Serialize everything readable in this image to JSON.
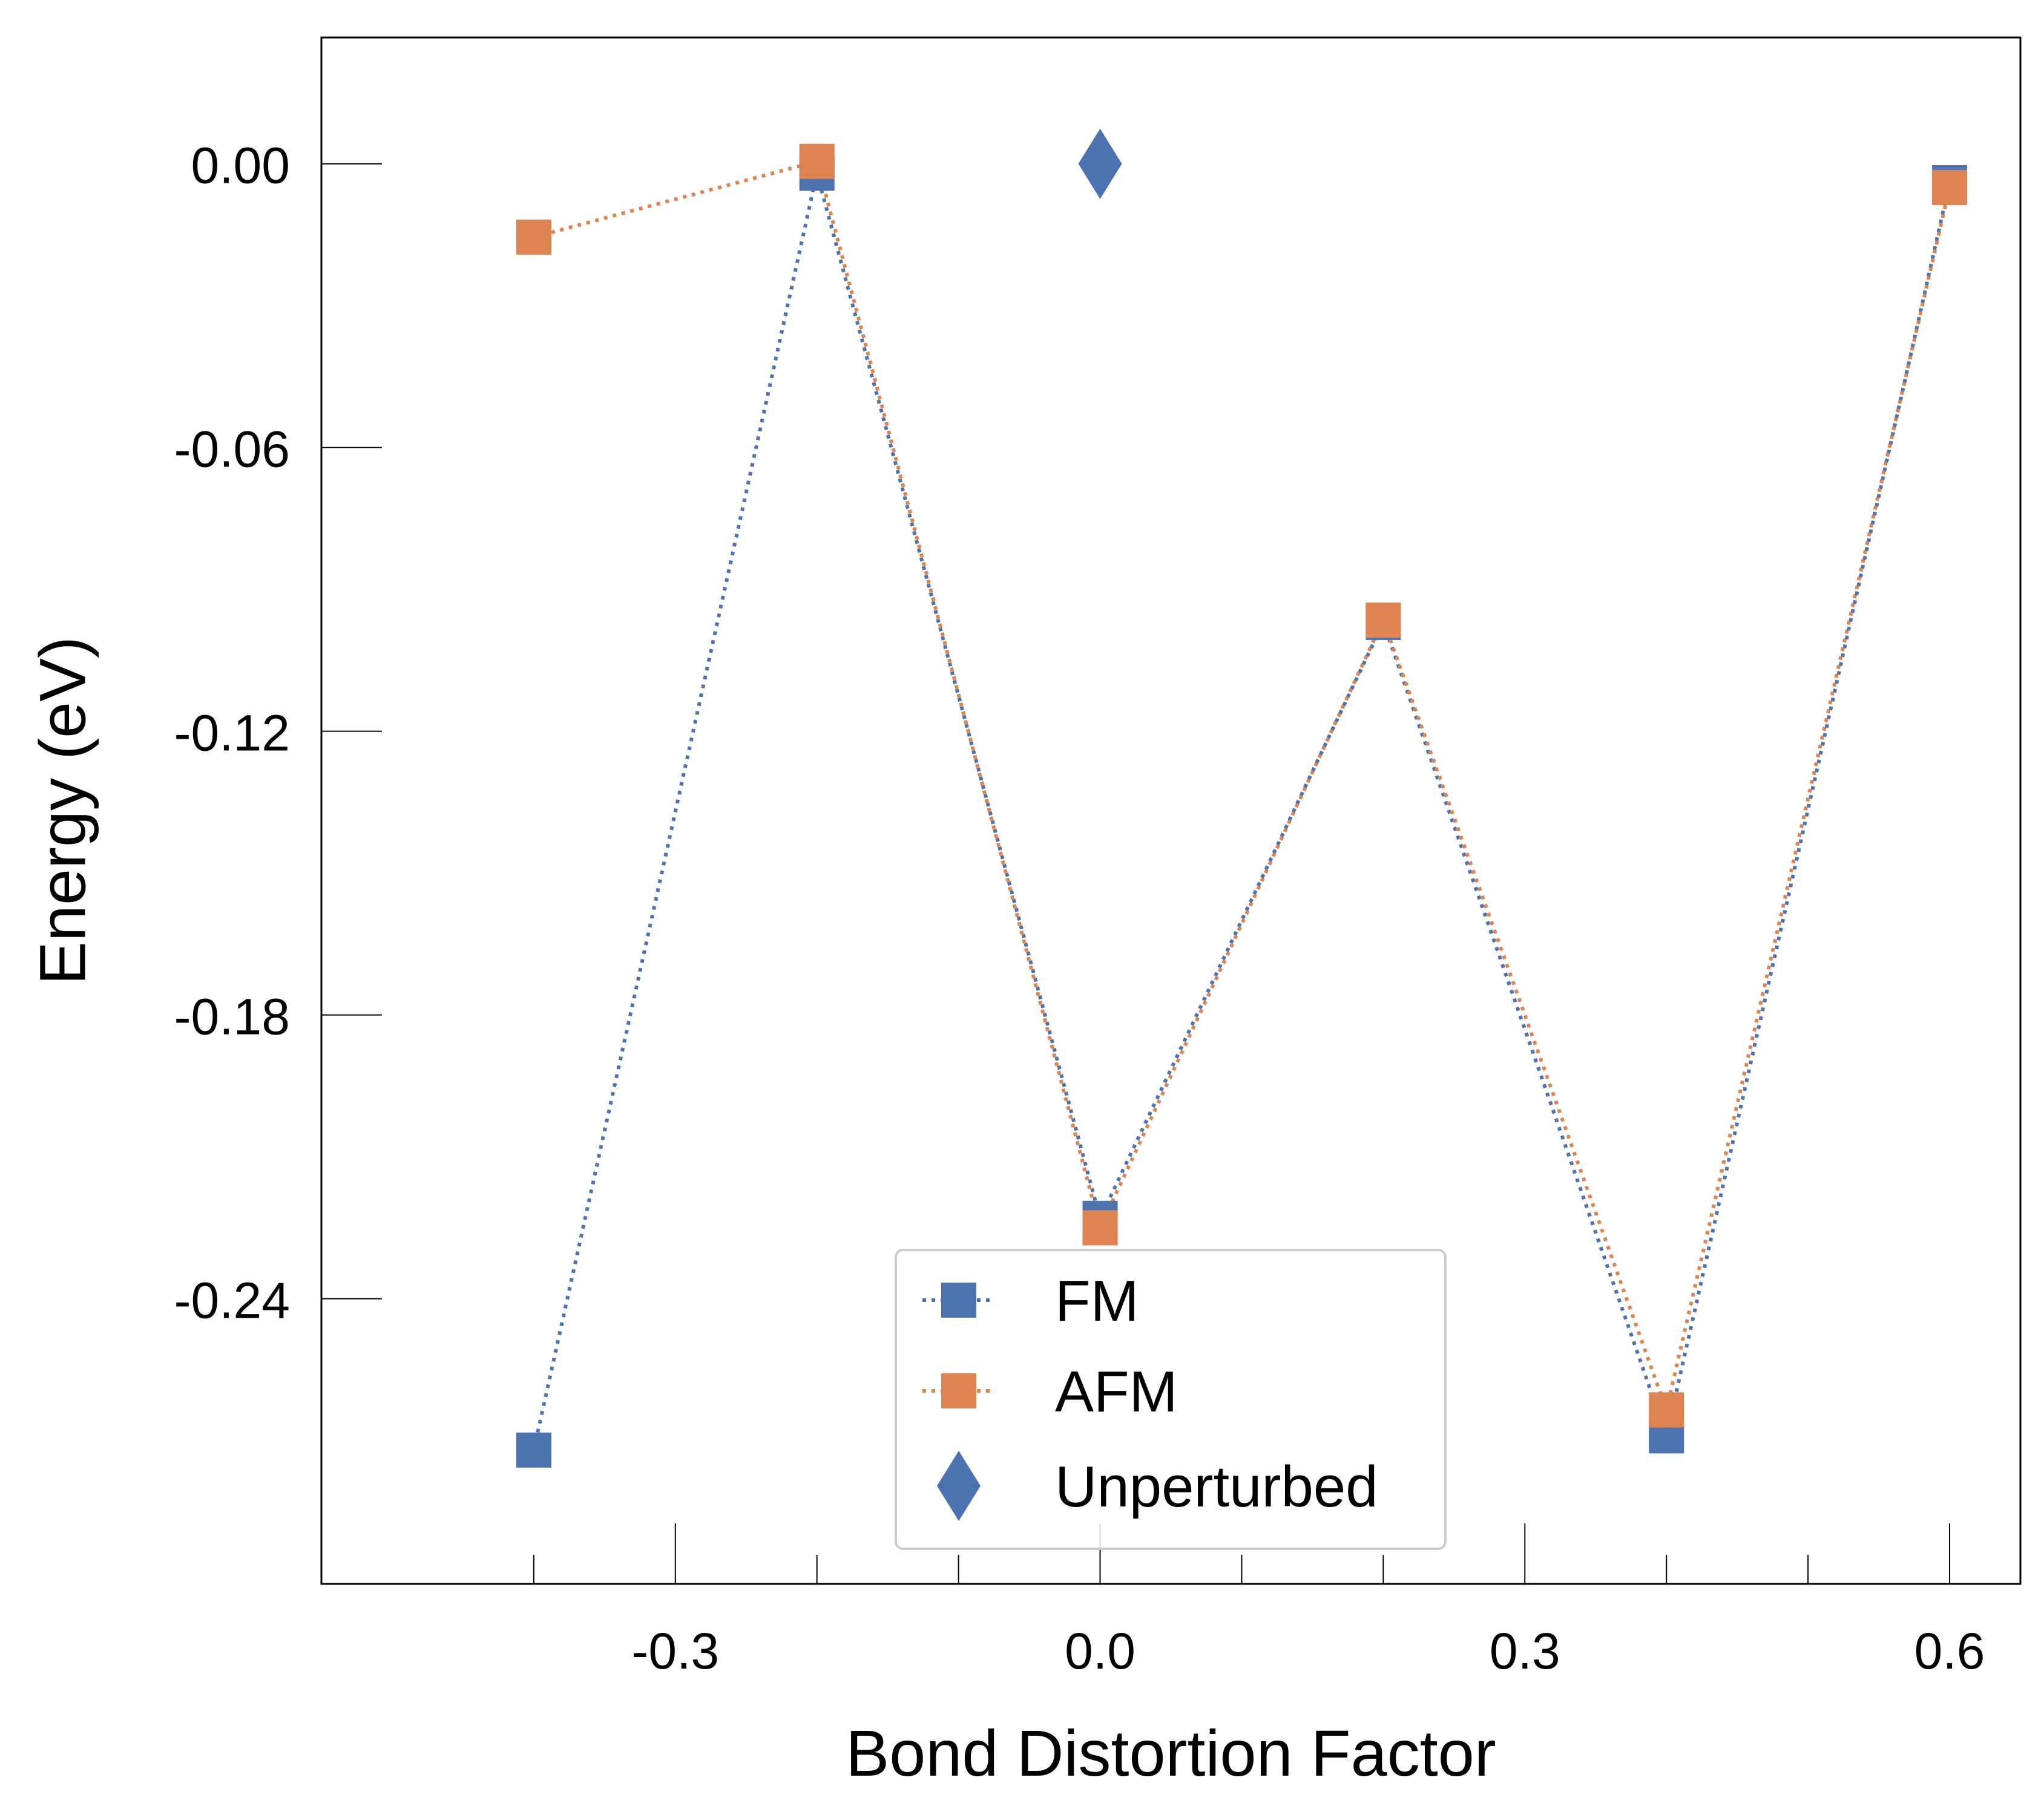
{
  "chart_data": {
    "type": "scatter",
    "title": "",
    "xlabel": "Bond Distortion Factor",
    "ylabel": "Energy (eV)",
    "xlim": [
      -0.55,
      0.65
    ],
    "ylim": [
      -0.3003,
      0.0267
    ],
    "x_major_ticks": [
      -0.3,
      0.0,
      0.3,
      0.6
    ],
    "x_tick_labels": [
      "-0.3",
      "0.0",
      "0.3",
      "0.6"
    ],
    "x_minor_ticks": [
      -0.4,
      -0.2,
      -0.1,
      0.1,
      0.2,
      0.4,
      0.5
    ],
    "y_major_ticks": [
      0.0,
      -0.06,
      -0.12,
      -0.18,
      -0.24
    ],
    "y_tick_labels": [
      "0.00",
      "-0.06",
      "-0.12",
      "-0.18",
      "-0.24"
    ],
    "grid": false,
    "legend_position": "bottom-center",
    "series": [
      {
        "name": "FM",
        "color": "#4c72b0",
        "marker": "square",
        "linestyle": "dotted",
        "x": [
          -0.4,
          -0.2,
          0.0,
          0.2,
          0.4,
          0.6
        ],
        "y": [
          -0.272,
          -0.002,
          -0.223,
          -0.097,
          -0.269,
          -0.004
        ]
      },
      {
        "name": "AFM",
        "color": "#dd8452",
        "marker": "square",
        "linestyle": "dotted",
        "x": [
          -0.4,
          -0.2,
          0.0,
          0.2,
          0.4,
          0.6
        ],
        "y": [
          -0.0155,
          0.0005,
          -0.225,
          -0.0965,
          -0.2635,
          -0.005
        ]
      },
      {
        "name": "Unperturbed",
        "color": "#4c72b0",
        "marker": "diamond",
        "linestyle": "none",
        "x": [
          0.0
        ],
        "y": [
          0.0
        ]
      }
    ]
  }
}
